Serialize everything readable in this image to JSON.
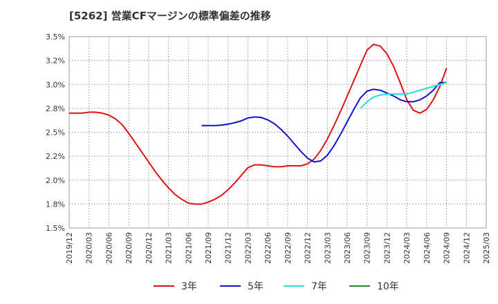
{
  "title": "[5262]  営業CFマージンの標準偏差の推移",
  "chart_data": {
    "type": "line",
    "title": "[5262]  営業CFマージンの標準偏差の推移",
    "ylim": [
      1.5,
      3.5
    ],
    "yticks": [
      "1.5%",
      "1.8%",
      "2.0%",
      "2.2%",
      "2.5%",
      "2.8%",
      "3.0%",
      "3.2%",
      "3.5%"
    ],
    "xticks": [
      "2019/12",
      "2020/03",
      "2020/06",
      "2020/09",
      "2020/12",
      "2021/03",
      "2021/06",
      "2021/09",
      "2021/12",
      "2022/03",
      "2022/06",
      "2022/09",
      "2022/12",
      "2023/03",
      "2023/06",
      "2023/09",
      "2023/12",
      "2024/03",
      "2024/06",
      "2024/09",
      "2024/12",
      "2025/03"
    ],
    "grid": true,
    "legend_position": "bottom",
    "series": [
      {
        "name": "3年",
        "color": "#dd1111",
        "x": [
          "2019/12",
          "2020/01",
          "2020/02",
          "2020/03",
          "2020/04",
          "2020/05",
          "2020/06",
          "2020/07",
          "2020/08",
          "2020/09",
          "2020/10",
          "2020/11",
          "2020/12",
          "2021/01",
          "2021/02",
          "2021/03",
          "2021/04",
          "2021/05",
          "2021/06",
          "2021/07",
          "2021/08",
          "2021/09",
          "2021/10",
          "2021/11",
          "2021/12",
          "2022/01",
          "2022/02",
          "2022/03",
          "2022/04",
          "2022/05",
          "2022/06",
          "2022/07",
          "2022/08",
          "2022/09",
          "2022/10",
          "2022/11",
          "2022/12",
          "2023/01",
          "2023/02",
          "2023/03",
          "2023/04",
          "2023/05",
          "2023/06",
          "2023/07",
          "2023/08",
          "2023/09",
          "2023/10",
          "2023/11",
          "2023/12",
          "2024/01",
          "2024/02",
          "2024/03",
          "2024/04",
          "2024/05",
          "2024/06",
          "2024/07",
          "2024/08",
          "2024/09"
        ],
        "values": [
          2.7,
          2.7,
          2.7,
          2.71,
          2.71,
          2.7,
          2.68,
          2.64,
          2.58,
          2.49,
          2.39,
          2.29,
          2.19,
          2.09,
          2.0,
          1.92,
          1.85,
          1.8,
          1.76,
          1.75,
          1.75,
          1.77,
          1.8,
          1.84,
          1.9,
          1.97,
          2.05,
          2.13,
          2.16,
          2.16,
          2.15,
          2.14,
          2.14,
          2.15,
          2.15,
          2.15,
          2.17,
          2.22,
          2.31,
          2.43,
          2.57,
          2.72,
          2.88,
          3.04,
          3.2,
          3.36,
          3.42,
          3.4,
          3.32,
          3.19,
          3.02,
          2.84,
          2.73,
          2.7,
          2.74,
          2.84,
          2.98,
          3.17
        ]
      },
      {
        "name": "5年",
        "color": "#1111cc",
        "x": [
          "2021/08",
          "2021/09",
          "2021/10",
          "2021/11",
          "2021/12",
          "2022/01",
          "2022/02",
          "2022/03",
          "2022/04",
          "2022/05",
          "2022/06",
          "2022/07",
          "2022/08",
          "2022/09",
          "2022/10",
          "2022/11",
          "2022/12",
          "2023/01",
          "2023/02",
          "2023/03",
          "2023/04",
          "2023/05",
          "2023/06",
          "2023/07",
          "2023/08",
          "2023/09",
          "2023/10",
          "2023/11",
          "2023/12",
          "2024/01",
          "2024/02",
          "2024/03",
          "2024/04",
          "2024/05",
          "2024/06",
          "2024/07",
          "2024/08",
          "2024/09"
        ],
        "values": [
          2.57,
          2.57,
          2.57,
          2.575,
          2.585,
          2.6,
          2.62,
          2.65,
          2.66,
          2.655,
          2.63,
          2.59,
          2.53,
          2.46,
          2.38,
          2.3,
          2.23,
          2.19,
          2.2,
          2.26,
          2.36,
          2.48,
          2.61,
          2.74,
          2.86,
          2.93,
          2.95,
          2.94,
          2.91,
          2.88,
          2.84,
          2.82,
          2.82,
          2.84,
          2.88,
          2.94,
          3.02,
          3.02
        ]
      },
      {
        "name": "7年",
        "color": "#22dddd",
        "x": [
          "2023/08",
          "2023/09",
          "2023/10",
          "2023/11",
          "2023/12",
          "2024/01",
          "2024/02",
          "2024/03",
          "2024/04",
          "2024/05",
          "2024/06",
          "2024/07",
          "2024/08",
          "2024/09"
        ],
        "values": [
          2.75,
          2.82,
          2.87,
          2.89,
          2.9,
          2.9,
          2.9,
          2.9,
          2.92,
          2.94,
          2.96,
          2.98,
          3.0,
          3.02
        ]
      },
      {
        "name": "10年",
        "color": "#228822",
        "x": [],
        "values": []
      }
    ]
  }
}
